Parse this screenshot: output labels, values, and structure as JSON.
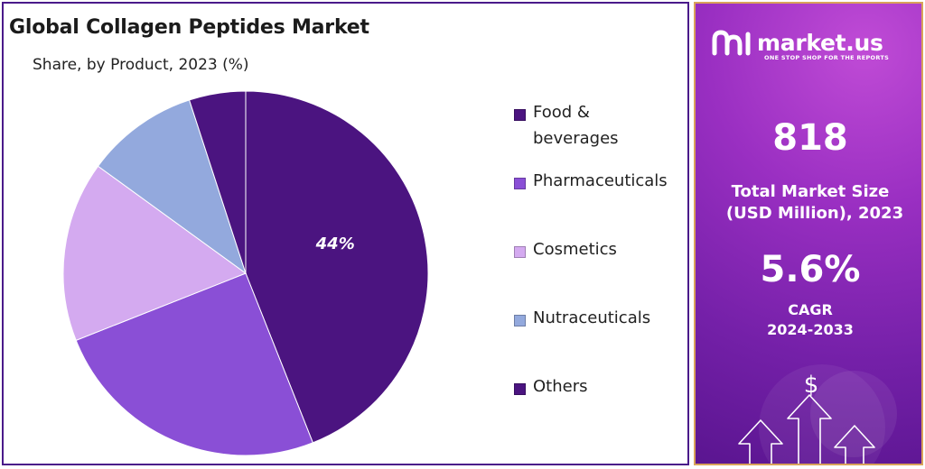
{
  "chart_data": {
    "type": "pie",
    "title": "Global Collagen Peptides Market",
    "subtitle": "Share, by Product, 2023 (%)",
    "categories": [
      "Food & beverages",
      "Pharmaceuticals",
      "Cosmetics",
      "Nutraceuticals",
      "Others"
    ],
    "values": [
      44,
      25,
      16,
      10,
      5
    ],
    "data_labels": [
      "44%",
      "",
      "",
      "",
      ""
    ],
    "colors": [
      "#4b1480",
      "#8a4fd6",
      "#d4aaf0",
      "#93a9dd",
      "#4b1480"
    ],
    "legend_position": "right"
  },
  "legend": {
    "items": [
      {
        "label_lines": [
          "Food &",
          "beverages"
        ],
        "color": "#4b1480"
      },
      {
        "label_lines": [
          "Pharmaceuticals"
        ],
        "color": "#8a4fd6"
      },
      {
        "label_lines": [
          "Cosmetics"
        ],
        "color": "#d4aaf0"
      },
      {
        "label_lines": [
          "Nutraceuticals"
        ],
        "color": "#93a9dd"
      },
      {
        "label_lines": [
          "Others"
        ],
        "color": "#4b1480"
      }
    ]
  },
  "sidebar": {
    "brand": "market.us",
    "tagline": "ONE STOP SHOP FOR THE REPORTS",
    "market_size_value": "818",
    "market_size_label_1": "Total Market Size",
    "market_size_label_2": "(USD Million), 2023",
    "cagr_value": "5.6%",
    "cagr_label_1": "CAGR",
    "cagr_label_2": "2024-2033",
    "dollar_icon": "dollar-icon",
    "arrow_icons": "up-arrow-icon"
  }
}
